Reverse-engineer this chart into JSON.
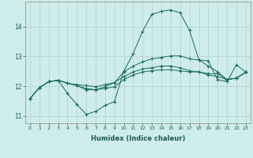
{
  "title": "",
  "xlabel": "Humidex (Indice chaleur)",
  "background_color": "#ceecea",
  "grid_color": "#b0d0cd",
  "line_color": "#1a6b5e",
  "xlim": [
    -0.5,
    23.5
  ],
  "ylim": [
    10.75,
    14.85
  ],
  "yticks": [
    11,
    12,
    13,
    14
  ],
  "x": [
    0,
    1,
    2,
    3,
    4,
    5,
    6,
    7,
    8,
    9,
    10,
    11,
    12,
    13,
    14,
    15,
    16,
    17,
    18,
    19,
    20,
    21,
    22,
    23
  ],
  "line1": [
    11.58,
    11.95,
    12.15,
    12.2,
    11.75,
    11.38,
    11.05,
    11.15,
    11.35,
    11.48,
    12.5,
    13.1,
    13.85,
    14.42,
    14.52,
    14.57,
    14.47,
    13.88,
    12.88,
    12.85,
    12.22,
    12.15,
    12.72,
    12.47
  ],
  "line2": [
    11.58,
    11.95,
    12.15,
    12.2,
    12.1,
    12.02,
    11.88,
    11.88,
    11.98,
    12.12,
    12.48,
    12.68,
    12.82,
    12.92,
    12.97,
    13.02,
    13.02,
    12.92,
    12.88,
    12.68,
    12.48,
    12.22,
    12.27,
    12.47
  ],
  "line3": [
    11.58,
    11.95,
    12.15,
    12.2,
    12.1,
    12.05,
    12.02,
    11.98,
    12.05,
    12.12,
    12.32,
    12.48,
    12.58,
    12.62,
    12.68,
    12.68,
    12.62,
    12.52,
    12.48,
    12.42,
    12.42,
    12.22,
    12.27,
    12.47
  ],
  "line4": [
    11.58,
    11.95,
    12.15,
    12.2,
    12.1,
    12.02,
    11.92,
    11.88,
    11.92,
    11.98,
    12.22,
    12.38,
    12.48,
    12.52,
    12.55,
    12.55,
    12.52,
    12.48,
    12.48,
    12.38,
    12.32,
    12.22,
    12.27,
    12.47
  ]
}
